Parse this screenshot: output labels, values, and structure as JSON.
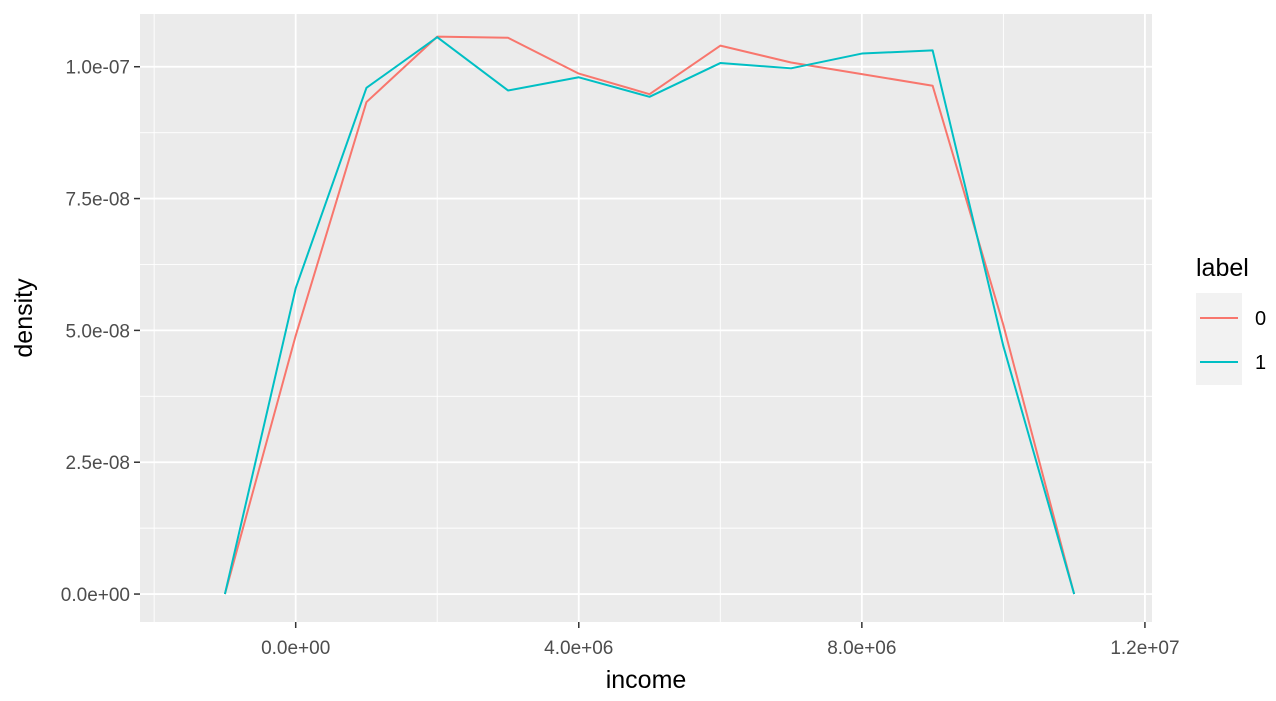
{
  "chart_data": {
    "type": "line",
    "title": "",
    "xlabel": "income",
    "ylabel": "density",
    "xlim": [
      -2200000,
      12100000
    ],
    "ylim": [
      -5.3e-09,
      1.1e-07
    ],
    "x_ticks": [
      0,
      4000000,
      8000000,
      12000000
    ],
    "x_tick_labels": [
      "0.0e+00",
      "4.0e+06",
      "8.0e+06",
      "1.2e+07"
    ],
    "y_ticks": [
      0,
      2.5e-08,
      5e-08,
      7.5e-08,
      1e-07
    ],
    "y_tick_labels": [
      "0.0e+00",
      "2.5e-08",
      "5.0e-08",
      "7.5e-08",
      "1.0e-07"
    ],
    "grid": true,
    "legend": {
      "title": "label",
      "position": "right"
    },
    "background": "#ebebeb",
    "grid_color": "#ffffff",
    "series": [
      {
        "name": "0",
        "color": "#f8766d",
        "x": [
          -1000000,
          0,
          1000000,
          2000000,
          3000000,
          4000000,
          5000000,
          6000000,
          7000000,
          8000000,
          9000000,
          10000000,
          11000000
        ],
        "y": [
          0,
          4.9e-08,
          9.33e-08,
          1.057e-07,
          1.055e-07,
          9.87e-08,
          9.48e-08,
          1.04e-07,
          1.008e-07,
          9.86e-08,
          9.64e-08,
          5.1e-08,
          0
        ]
      },
      {
        "name": "1",
        "color": "#00bfc4",
        "x": [
          -1000000,
          0,
          1000000,
          2000000,
          3000000,
          4000000,
          5000000,
          6000000,
          7000000,
          8000000,
          9000000,
          10000000,
          11000000
        ],
        "y": [
          0,
          5.8e-08,
          9.6e-08,
          1.056e-07,
          9.55e-08,
          9.8e-08,
          9.43e-08,
          1.007e-07,
          9.97e-08,
          1.025e-07,
          1.031e-07,
          4.7e-08,
          0
        ]
      }
    ]
  }
}
